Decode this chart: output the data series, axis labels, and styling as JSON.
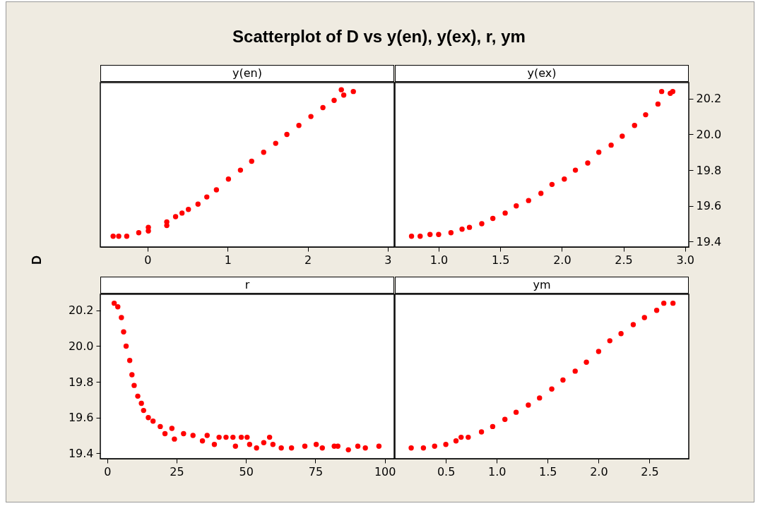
{
  "chart_data": [
    {
      "type": "scatter",
      "title": "Scatterplot of D vs y(en), y(ex), r, ym",
      "ylabel": "D",
      "xlabel": "y(en)",
      "marker": "circle",
      "tick_labels": "x",
      "xlim": [
        -0.59,
        3.08
      ],
      "ylim": [
        19.37,
        20.29
      ],
      "xticks": [
        0,
        1,
        2,
        3
      ],
      "x": [
        -0.43,
        -0.36,
        -0.26,
        -0.11,
        0.01,
        0.01,
        0.24,
        0.24,
        0.35,
        0.43,
        0.51,
        0.63,
        0.74,
        0.86,
        1.01,
        1.16,
        1.3,
        1.45,
        1.6,
        1.74,
        1.89,
        2.04,
        2.19,
        2.33,
        2.45,
        2.42,
        2.57
      ],
      "series": [
        {
          "color": "#ff0000",
          "values": [
            19.43,
            19.43,
            19.43,
            19.45,
            19.48,
            19.46,
            19.51,
            19.49,
            19.54,
            19.56,
            19.58,
            19.61,
            19.65,
            19.69,
            19.75,
            19.8,
            19.85,
            19.9,
            19.95,
            20.0,
            20.05,
            20.1,
            20.15,
            20.19,
            20.22,
            20.25,
            20.24
          ]
        }
      ]
    },
    {
      "type": "scatter",
      "xlabel": "y(ex)",
      "marker": "circle",
      "xlim": [
        0.645,
        3.03
      ],
      "ylim": [
        19.37,
        20.29
      ],
      "xticks": [
        {
          "value": 1,
          "label": "1.0"
        },
        1.5,
        {
          "value": 2,
          "label": "2.0"
        },
        2.5,
        {
          "value": 3,
          "label": "3.0"
        }
      ],
      "yticks": [
        19.4,
        19.6,
        19.8,
        {
          "value": 20,
          "label": "20.0"
        },
        20.2
      ],
      "x": [
        0.78,
        0.85,
        0.93,
        1.0,
        1.1,
        1.19,
        1.25,
        1.35,
        1.44,
        1.54,
        1.63,
        1.73,
        1.83,
        1.92,
        2.02,
        2.11,
        2.21,
        2.3,
        2.4,
        2.49,
        2.59,
        2.68,
        2.78,
        2.88,
        2.81,
        2.9
      ],
      "series": [
        {
          "color": "#ff0000",
          "values": [
            19.43,
            19.43,
            19.44,
            19.44,
            19.45,
            19.47,
            19.48,
            19.5,
            19.53,
            19.56,
            19.6,
            19.63,
            19.67,
            19.72,
            19.75,
            19.8,
            19.84,
            19.9,
            19.94,
            19.99,
            20.05,
            20.11,
            20.17,
            20.23,
            20.24,
            20.24
          ]
        }
      ]
    },
    {
      "type": "scatter",
      "xlabel": "r",
      "marker": "circle",
      "xlim": [
        -2.5,
        103.4
      ],
      "ylim": [
        19.37,
        20.29
      ],
      "xticks": [
        0,
        25,
        50,
        75,
        100
      ],
      "yticks": [
        19.4,
        19.6,
        19.8,
        {
          "value": 20,
          "label": "20.0"
        },
        20.2
      ],
      "x": [
        2.5,
        3.8,
        5.1,
        5.9,
        6.8,
        8.1,
        8.9,
        9.7,
        11.0,
        12.3,
        13.1,
        14.8,
        16.5,
        19.1,
        20.8,
        23.3,
        24.2,
        27.5,
        30.9,
        34.3,
        36.0,
        38.6,
        40.3,
        42.8,
        45.3,
        46.2,
        48.3,
        50.4,
        51.3,
        53.8,
        56.4,
        58.5,
        59.7,
        62.7,
        66.4,
        71.2,
        75.3,
        77.5,
        81.8,
        83.1,
        86.9,
        90.3,
        93.0,
        97.9
      ],
      "series": [
        {
          "color": "#ff0000",
          "values": [
            20.24,
            20.22,
            20.16,
            20.08,
            20.0,
            19.92,
            19.84,
            19.78,
            19.72,
            19.68,
            19.64,
            19.6,
            19.58,
            19.55,
            19.51,
            19.54,
            19.48,
            19.51,
            19.5,
            19.47,
            19.5,
            19.45,
            19.49,
            19.49,
            19.49,
            19.44,
            19.49,
            19.49,
            19.45,
            19.43,
            19.46,
            19.49,
            19.45,
            19.43,
            19.43,
            19.44,
            19.45,
            19.43,
            19.44,
            19.44,
            19.42,
            19.44,
            19.43,
            19.44
          ]
        }
      ]
    },
    {
      "type": "scatter",
      "xlabel": "ym",
      "marker": "circle",
      "tick_labels": "x",
      "xlim": [
        0.0,
        2.885
      ],
      "ylim": [
        19.37,
        20.29
      ],
      "xticks": [
        0.5,
        {
          "value": 1,
          "label": "1.0"
        },
        1.5,
        {
          "value": 2,
          "label": "2.0"
        },
        2.5
      ],
      "x": [
        0.16,
        0.28,
        0.39,
        0.5,
        0.6,
        0.65,
        0.72,
        0.85,
        0.96,
        1.08,
        1.19,
        1.31,
        1.42,
        1.54,
        1.65,
        1.77,
        1.88,
        2.0,
        2.11,
        2.22,
        2.34,
        2.45,
        2.57,
        2.64,
        2.73
      ],
      "series": [
        {
          "color": "#ff0000",
          "values": [
            19.43,
            19.43,
            19.44,
            19.45,
            19.47,
            19.49,
            19.49,
            19.52,
            19.55,
            19.59,
            19.63,
            19.67,
            19.71,
            19.76,
            19.81,
            19.86,
            19.91,
            19.97,
            20.03,
            20.07,
            20.12,
            20.16,
            20.2,
            20.24,
            20.24
          ]
        }
      ]
    }
  ]
}
